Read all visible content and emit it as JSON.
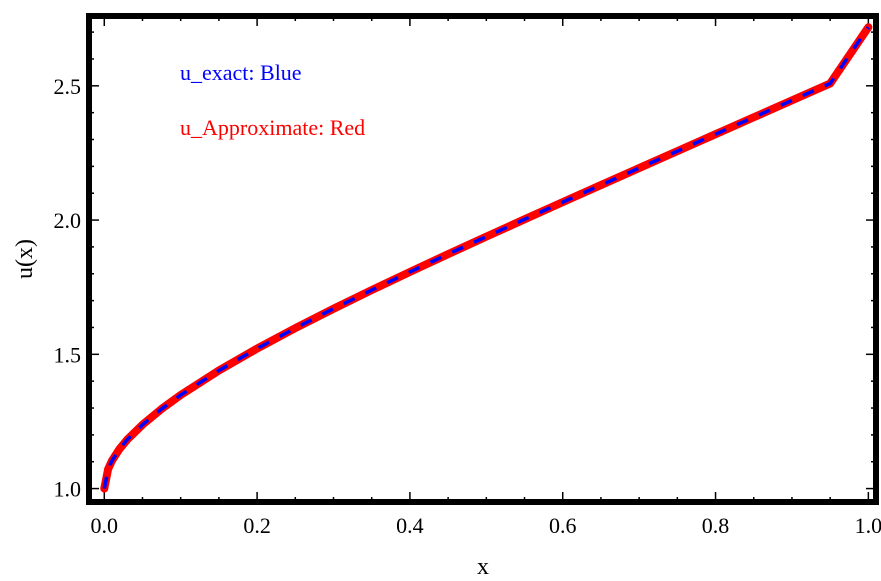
{
  "chart_data": {
    "type": "line",
    "title": "",
    "xlabel": "x",
    "ylabel": "u(x)",
    "xlim": [
      -0.02,
      1.01
    ],
    "ylim": [
      0.95,
      2.76
    ],
    "x_ticks": [
      0.0,
      0.2,
      0.4,
      0.6,
      0.8,
      1.0
    ],
    "x_tick_labels": [
      "0.0",
      "0.2",
      "0.4",
      "0.6",
      "0.8",
      "1.0"
    ],
    "y_ticks": [
      1.0,
      1.5,
      2.0,
      2.5
    ],
    "y_tick_labels": [
      "1.0",
      "1.5",
      "2.0",
      "2.5"
    ],
    "grid": false,
    "annotations": [
      {
        "text": "u_exact:  Blue",
        "color": "#0000ff"
      },
      {
        "text": "u_Approximate:  Red",
        "color": "#ff0000"
      }
    ],
    "series": [
      {
        "color": "#ff0000",
        "style": "solid",
        "x": [
          0.0,
          0.005,
          0.01,
          0.02,
          0.03,
          0.05,
          0.075,
          0.1,
          0.15,
          0.2,
          0.25,
          0.3,
          0.35,
          0.4,
          0.45,
          0.5,
          0.55,
          0.6,
          0.65,
          0.7,
          0.75,
          0.8,
          0.85,
          0.9,
          0.95,
          1.0
        ],
        "y": [
          1.0,
          1.0725,
          1.1036,
          1.1478,
          1.1822,
          1.2378,
          1.2967,
          1.3484,
          1.4397,
          1.5215,
          1.5975,
          1.6697,
          1.7392,
          1.8068,
          1.8731,
          1.9383,
          2.0028,
          2.0668,
          2.1304,
          2.1937,
          2.2568,
          2.3198,
          2.3828,
          2.4457,
          2.5087,
          2.7183
        ]
      },
      {
        "color": "#0000ff",
        "style": "dashed",
        "x": [
          0.0,
          0.005,
          0.01,
          0.02,
          0.03,
          0.05,
          0.075,
          0.1,
          0.15,
          0.2,
          0.25,
          0.3,
          0.35,
          0.4,
          0.45,
          0.5,
          0.55,
          0.6,
          0.65,
          0.7,
          0.75,
          0.8,
          0.85,
          0.9,
          0.95,
          1.0
        ],
        "y": [
          1.0,
          1.0725,
          1.1036,
          1.1478,
          1.1822,
          1.2378,
          1.2967,
          1.3484,
          1.4397,
          1.5215,
          1.5975,
          1.6697,
          1.7392,
          1.8068,
          1.8731,
          1.9383,
          2.0028,
          2.0668,
          2.1304,
          2.1937,
          2.2568,
          2.3198,
          2.3828,
          2.4457,
          2.5087,
          2.7183
        ]
      }
    ]
  }
}
